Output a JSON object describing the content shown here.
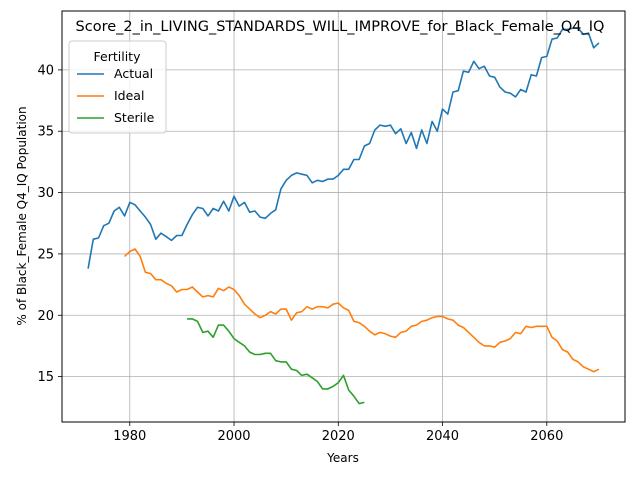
{
  "chart_data": {
    "type": "line",
    "title": "Score_2_in_LIVING_STANDARDS_WILL_IMPROVE_for_Black_Female_Q4_IQ",
    "xlabel": "Years",
    "ylabel": "% of Black_Female Q4_IQ Population",
    "xlim": [
      1967,
      2075
    ],
    "ylim": [
      11.3,
      44.8
    ],
    "xticks": [
      1980,
      2000,
      2020,
      2040,
      2060
    ],
    "yticks": [
      15,
      20,
      25,
      30,
      35,
      40
    ],
    "grid": true,
    "legend": {
      "title": "Fertility",
      "placement": "top-left"
    },
    "series": [
      {
        "name": "Actual",
        "color": "#1f77b4",
        "x": [
          1972,
          1973,
          1974,
          1975,
          1976,
          1977,
          1978,
          1979,
          1980,
          1981,
          1982,
          1983,
          1984,
          1985,
          1986,
          1987,
          1988,
          1989,
          1990,
          1991,
          1992,
          1993,
          1994,
          1995,
          1996,
          1997,
          1998,
          1999,
          2000,
          2001,
          2002,
          2003,
          2004,
          2005,
          2006,
          2007,
          2008,
          2009,
          2010,
          2011,
          2012,
          2013,
          2014,
          2015,
          2016,
          2017,
          2018,
          2019,
          2020,
          2021,
          2022,
          2023,
          2024,
          2025,
          2026,
          2027,
          2028,
          2029,
          2030,
          2031,
          2032,
          2033,
          2034,
          2035,
          2036,
          2037,
          2038,
          2039,
          2040,
          2041,
          2042,
          2043,
          2044,
          2045,
          2046,
          2047,
          2048,
          2049,
          2050,
          2051,
          2052,
          2053,
          2054,
          2055,
          2056,
          2057,
          2058,
          2059,
          2060,
          2061,
          2062,
          2063,
          2064,
          2065,
          2066,
          2067,
          2068,
          2069,
          2070
        ],
        "values": [
          23.8,
          26.2,
          26.3,
          27.3,
          27.5,
          28.5,
          28.8,
          28.1,
          29.2,
          29.0,
          28.5,
          28.0,
          27.4,
          26.2,
          26.7,
          26.4,
          26.1,
          26.5,
          26.5,
          27.4,
          28.2,
          28.8,
          28.7,
          28.1,
          28.7,
          28.5,
          29.3,
          28.5,
          29.7,
          28.9,
          29.2,
          28.4,
          28.5,
          28.0,
          27.9,
          28.3,
          28.6,
          30.3,
          31.0,
          31.4,
          31.6,
          31.5,
          31.4,
          30.8,
          31.0,
          30.9,
          31.1,
          31.1,
          31.4,
          31.9,
          31.9,
          32.7,
          32.7,
          33.8,
          34.0,
          35.1,
          35.5,
          35.4,
          35.5,
          34.8,
          35.2,
          34.0,
          34.9,
          33.6,
          35.1,
          34.0,
          35.8,
          35.0,
          36.8,
          36.4,
          38.2,
          38.3,
          39.9,
          39.8,
          40.7,
          40.1,
          40.3,
          39.5,
          39.4,
          38.6,
          38.2,
          38.1,
          37.8,
          38.4,
          38.2,
          39.6,
          39.5,
          41.0,
          41.1,
          42.5,
          42.6,
          43.3,
          43.3,
          43.4,
          43.4,
          42.9,
          43.0,
          41.8,
          42.2
        ]
      },
      {
        "name": "Ideal",
        "color": "#ff7f0e",
        "x": [
          1979,
          1980,
          1981,
          1982,
          1983,
          1984,
          1985,
          1986,
          1987,
          1988,
          1989,
          1990,
          1991,
          1992,
          1993,
          1994,
          1995,
          1996,
          1997,
          1998,
          1999,
          2000,
          2001,
          2002,
          2003,
          2004,
          2005,
          2006,
          2007,
          2008,
          2009,
          2010,
          2011,
          2012,
          2013,
          2014,
          2015,
          2016,
          2017,
          2018,
          2019,
          2020,
          2021,
          2022,
          2023,
          2024,
          2025,
          2026,
          2027,
          2028,
          2029,
          2030,
          2031,
          2032,
          2033,
          2034,
          2035,
          2036,
          2037,
          2038,
          2039,
          2040,
          2041,
          2042,
          2043,
          2044,
          2045,
          2046,
          2047,
          2048,
          2049,
          2050,
          2051,
          2052,
          2053,
          2054,
          2055,
          2056,
          2057,
          2058,
          2059,
          2060,
          2061,
          2062,
          2063,
          2064,
          2065,
          2066,
          2067,
          2068,
          2069,
          2070
        ],
        "values": [
          24.8,
          25.2,
          25.4,
          24.8,
          23.5,
          23.4,
          22.9,
          22.9,
          22.6,
          22.4,
          21.9,
          22.1,
          22.1,
          22.3,
          21.9,
          21.5,
          21.6,
          21.5,
          22.2,
          22.0,
          22.3,
          22.1,
          21.6,
          20.9,
          20.5,
          20.1,
          19.8,
          20.0,
          20.3,
          20.1,
          20.5,
          20.5,
          19.6,
          20.2,
          20.3,
          20.7,
          20.5,
          20.7,
          20.7,
          20.6,
          20.9,
          21.0,
          20.6,
          20.4,
          19.5,
          19.4,
          19.1,
          18.7,
          18.4,
          18.6,
          18.5,
          18.3,
          18.2,
          18.6,
          18.7,
          19.1,
          19.2,
          19.5,
          19.6,
          19.8,
          19.9,
          19.9,
          19.7,
          19.6,
          19.2,
          19.0,
          18.6,
          18.2,
          17.8,
          17.5,
          17.5,
          17.4,
          17.8,
          17.9,
          18.1,
          18.6,
          18.5,
          19.1,
          19.0,
          19.1,
          19.1,
          19.1,
          18.2,
          17.9,
          17.2,
          17.0,
          16.4,
          16.2,
          15.8,
          15.6,
          15.4,
          15.6
        ]
      },
      {
        "name": "Sterile",
        "color": "#2ca02c",
        "x": [
          1991,
          1992,
          1993,
          1994,
          1995,
          1996,
          1997,
          1998,
          1999,
          2000,
          2001,
          2002,
          2003,
          2004,
          2005,
          2006,
          2007,
          2008,
          2009,
          2010,
          2011,
          2012,
          2013,
          2014,
          2015,
          2016,
          2017,
          2018,
          2019,
          2020,
          2021,
          2022,
          2023,
          2024,
          2025
        ],
        "values": [
          19.7,
          19.7,
          19.5,
          18.6,
          18.7,
          18.2,
          19.2,
          19.2,
          18.7,
          18.1,
          17.8,
          17.5,
          17.0,
          16.8,
          16.8,
          16.9,
          16.9,
          16.3,
          16.2,
          16.2,
          15.6,
          15.5,
          15.1,
          15.2,
          14.9,
          14.6,
          14.0,
          14.0,
          14.2,
          14.5,
          15.1,
          13.9,
          13.4,
          12.8,
          12.9
        ]
      }
    ]
  }
}
